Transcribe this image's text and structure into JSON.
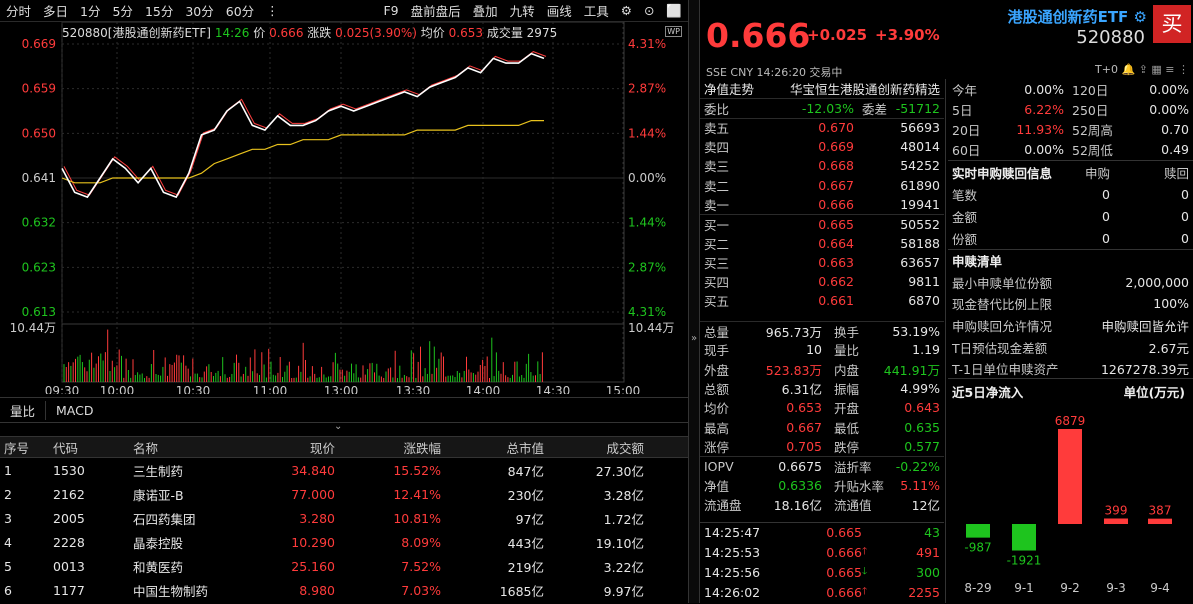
{
  "toolbar": {
    "left_items": [
      "分时",
      "多日",
      "1分",
      "5分",
      "15分",
      "30分",
      "60分",
      "⋮"
    ],
    "right_items": [
      "F9",
      "盘前盘后",
      "叠加",
      "九转",
      "画线",
      "工具"
    ]
  },
  "chart_header": {
    "code_name": "520880[港股通创新药ETF]",
    "time": "14:26",
    "price_label": "价",
    "price": "0.666",
    "change_label": "涨跌",
    "change": "0.025(3.90%)",
    "avg_label": "均价",
    "avg": "0.653",
    "volume_label": "成交量",
    "volume": "2975",
    "wp_badge": "WP"
  },
  "chart_data": {
    "type": "line",
    "price_ticks_left": [
      "0.669",
      "0.659",
      "0.650",
      "0.641",
      "0.632",
      "0.623",
      "0.613"
    ],
    "pct_ticks_right": [
      "4.31%",
      "2.87%",
      "1.44%",
      "0.00%",
      "1.44%",
      "2.87%",
      "4.31%"
    ],
    "volume_tick": "10.44万",
    "x_ticks": [
      "09:30",
      "10:00",
      "10:30",
      "11:00",
      "13:00",
      "13:30",
      "14:00",
      "14:30",
      "15:00"
    ],
    "ylim": [
      0.613,
      0.669
    ],
    "prev_close": 0.641,
    "volume_max": 104400,
    "series": [
      {
        "values": [
          0.643,
          0.638,
          0.637,
          0.641,
          0.645,
          0.643,
          0.64,
          0.643,
          0.638,
          0.637,
          0.642,
          0.65,
          0.651,
          0.655,
          0.657,
          0.652,
          0.651,
          0.654,
          0.652,
          0.652,
          0.653,
          0.655,
          0.656,
          0.655,
          0.656,
          0.657,
          0.658,
          0.659,
          0.658,
          0.66,
          0.661,
          0.662,
          0.664,
          0.663,
          0.666,
          0.665,
          0.665,
          0.667,
          0.666
        ]
      },
      {
        "values": [
          0.641,
          0.64,
          0.64,
          0.64,
          0.641,
          0.641,
          0.641,
          0.641,
          0.641,
          0.641,
          0.641,
          0.642,
          0.644,
          0.645,
          0.646,
          0.647,
          0.647,
          0.648,
          0.648,
          0.649,
          0.649,
          0.649,
          0.65,
          0.65,
          0.65,
          0.65,
          0.65,
          0.65,
          0.651,
          0.651,
          0.651,
          0.651,
          0.652,
          0.652,
          0.652,
          0.652,
          0.652,
          0.653,
          0.653
        ]
      }
    ]
  },
  "subtabs": [
    "量比",
    "MACD"
  ],
  "table": {
    "headers": [
      "序号",
      "代码",
      "名称",
      "现价",
      "涨跌幅",
      "总市值",
      "成交额"
    ],
    "rows": [
      [
        "1",
        "1530",
        "三生制药",
        "34.840",
        "15.52%",
        "847亿",
        "27.30亿"
      ],
      [
        "2",
        "2162",
        "康诺亚-B",
        "77.000",
        "12.41%",
        "230亿",
        "3.28亿"
      ],
      [
        "3",
        "2005",
        "石四药集团",
        "3.280",
        "10.81%",
        "97亿",
        "1.72亿"
      ],
      [
        "4",
        "2228",
        "晶泰控股",
        "10.290",
        "8.09%",
        "443亿",
        "19.10亿"
      ],
      [
        "5",
        "0013",
        "和黄医药",
        "25.160",
        "7.52%",
        "219亿",
        "3.22亿"
      ],
      [
        "6",
        "1177",
        "中国生物制药",
        "8.980",
        "7.03%",
        "1685亿",
        "9.97亿"
      ]
    ]
  },
  "quote": {
    "price": "0.666",
    "change": "+0.025",
    "pct": "+3.90%",
    "name": "港股通创新药ETF",
    "code": "520880",
    "buy": "买",
    "meta": "SSE   CNY   14:26:20   交易中",
    "tplus": "T+0"
  },
  "orderbook": {
    "nav_label": "净值走势",
    "index_name": "华宝恒生港股通创新药精选",
    "wb_label": "委比",
    "wb": "-12.03%",
    "wc_label": "委差",
    "wc": "-51712",
    "asks": [
      {
        "label": "卖五",
        "price": "0.670",
        "vol": "56693"
      },
      {
        "label": "卖四",
        "price": "0.669",
        "vol": "48014"
      },
      {
        "label": "卖三",
        "price": "0.668",
        "vol": "54252"
      },
      {
        "label": "卖二",
        "price": "0.667",
        "vol": "61890"
      },
      {
        "label": "卖一",
        "price": "0.666",
        "vol": "19941"
      }
    ],
    "bids": [
      {
        "label": "买一",
        "price": "0.665",
        "vol": "50552"
      },
      {
        "label": "买二",
        "price": "0.664",
        "vol": "58188"
      },
      {
        "label": "买三",
        "price": "0.663",
        "vol": "63657"
      },
      {
        "label": "买四",
        "price": "0.662",
        "vol": "9811"
      },
      {
        "label": "买五",
        "price": "0.661",
        "vol": "6870"
      }
    ]
  },
  "stats": [
    {
      "k": "总量",
      "v": "965.73万",
      "vc": "wh",
      "k2": "换手",
      "v2": "53.19%",
      "v2c": "wh"
    },
    {
      "k": "现手",
      "v": "10",
      "vc": "wh",
      "k2": "量比",
      "v2": "1.19",
      "v2c": "wh"
    },
    {
      "k": "外盘",
      "v": "523.83万",
      "vc": "up",
      "k2": "内盘",
      "v2": "441.91万",
      "v2c": "dn"
    },
    {
      "k": "总额",
      "v": "6.31亿",
      "vc": "wh",
      "k2": "振幅",
      "v2": "4.99%",
      "v2c": "wh"
    },
    {
      "k": "均价",
      "v": "0.653",
      "vc": "up",
      "k2": "开盘",
      "v2": "0.643",
      "v2c": "up"
    },
    {
      "k": "最高",
      "v": "0.667",
      "vc": "up",
      "k2": "最低",
      "v2": "0.635",
      "v2c": "dn"
    },
    {
      "k": "涨停",
      "v": "0.705",
      "vc": "up",
      "k2": "跌停",
      "v2": "0.577",
      "v2c": "dn"
    },
    {
      "k": "IOPV",
      "v": "0.6675",
      "vc": "wh",
      "k2": "溢折率",
      "v2": "-0.22%",
      "v2c": "dn"
    },
    {
      "k": "净值",
      "v": "0.6336",
      "vc": "dn",
      "k2": "升贴水率",
      "v2": "5.11%",
      "v2c": "up"
    },
    {
      "k": "流通盘",
      "v": "18.16亿",
      "vc": "wh",
      "k2": "流通值",
      "v2": "12亿",
      "v2c": "wh"
    }
  ],
  "ticks": [
    {
      "t": "14:25:47",
      "p": "0.665",
      "ar": "",
      "v": "43",
      "vc": "dn"
    },
    {
      "t": "14:25:53",
      "p": "0.666",
      "ar": "🡑",
      "v": "491",
      "vc": "up"
    },
    {
      "t": "14:25:56",
      "p": "0.665",
      "ar": "🡓",
      "v": "300",
      "vc": "dn"
    },
    {
      "t": "14:26:02",
      "p": "0.666",
      "ar": "🡑",
      "v": "2255",
      "vc": "up"
    }
  ],
  "perf": [
    {
      "k": "今年",
      "v": "0.00%",
      "vc": "wh",
      "k2": "120日",
      "v2": "0.00%"
    },
    {
      "k": "5日",
      "v": "6.22%",
      "vc": "up",
      "k2": "250日",
      "v2": "0.00%"
    },
    {
      "k": "20日",
      "v": "11.93%",
      "vc": "up",
      "k2": "52周高",
      "v2": "0.70"
    },
    {
      "k": "60日",
      "v": "0.00%",
      "vc": "wh",
      "k2": "52周低",
      "v2": "0.49"
    }
  ],
  "realtime": {
    "title": "实时申购赎回信息",
    "col1": "申购",
    "col2": "赎回",
    "rows": [
      {
        "k": "笔数",
        "a": "0",
        "b": "0"
      },
      {
        "k": "金额",
        "a": "0",
        "b": "0"
      },
      {
        "k": "份额",
        "a": "0",
        "b": "0"
      }
    ]
  },
  "sublist": {
    "title": "申赎清单",
    "rows": [
      {
        "k": "最小申赎单位份额",
        "v": "2,000,000"
      },
      {
        "k": "现金替代比例上限",
        "v": "100%"
      },
      {
        "k": "申购赎回允许情况",
        "v": "申购赎回皆允许"
      },
      {
        "k": "T日预估现金差额",
        "v": "2.67元"
      },
      {
        "k": "T-1日单位申赎资产",
        "v": "1267278.39元"
      }
    ]
  },
  "flow": {
    "title": "近5日净流入",
    "unit": "单位(万元)",
    "dates": [
      "8-29",
      "9-1",
      "9-2",
      "9-3",
      "9-4"
    ],
    "values": [
      -987,
      -1921,
      6879,
      399,
      387
    ],
    "labels": [
      "-987",
      "-1921",
      "6879",
      "399",
      "387"
    ]
  },
  "colors": {
    "up": "#ff3b3b",
    "down": "#1ec41e",
    "avg": "#e8c21d",
    "price_line": "#ffffff",
    "accent": "#3aa5ff"
  }
}
